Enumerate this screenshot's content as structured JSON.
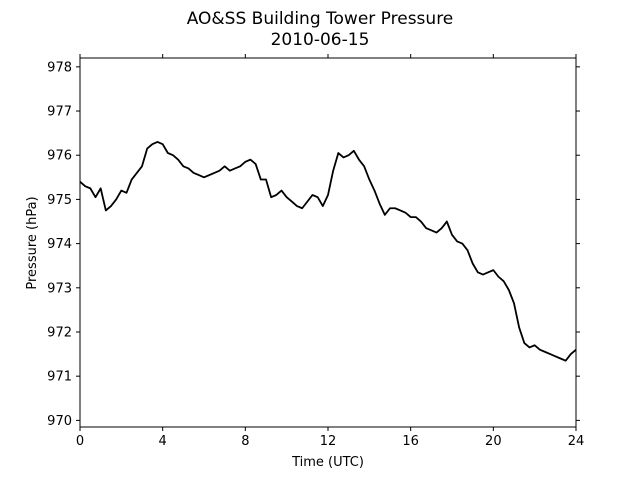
{
  "chart_data": {
    "type": "line",
    "title": "AO&SS Building Tower Pressure",
    "subtitle": "2010-06-15",
    "xlabel": "Time (UTC)",
    "ylabel": "Pressure (hPa)",
    "xlim": [
      0,
      24
    ],
    "ylim": [
      969.85,
      978.2
    ],
    "x_ticks": [
      0,
      4,
      8,
      12,
      16,
      20,
      24
    ],
    "y_ticks": [
      970,
      971,
      972,
      973,
      974,
      975,
      976,
      977,
      978
    ],
    "grid": false,
    "legend": "none",
    "line_color": "#000000",
    "series": [
      {
        "x": [
          0,
          0.25,
          0.5,
          0.75,
          1,
          1.25,
          1.5,
          1.75,
          2,
          2.25,
          2.5,
          2.75,
          3,
          3.25,
          3.5,
          3.75,
          4,
          4.25,
          4.5,
          4.75,
          5,
          5.25,
          5.5,
          5.75,
          6,
          6.25,
          6.5,
          6.75,
          7,
          7.25,
          7.5,
          7.75,
          8,
          8.25,
          8.5,
          8.75,
          9,
          9.25,
          9.5,
          9.75,
          10,
          10.25,
          10.5,
          10.75,
          11,
          11.25,
          11.5,
          11.75,
          12,
          12.25,
          12.5,
          12.75,
          13,
          13.25,
          13.5,
          13.75,
          14,
          14.25,
          14.5,
          14.75,
          15,
          15.25,
          15.5,
          15.75,
          16,
          16.25,
          16.5,
          16.75,
          17,
          17.25,
          17.5,
          17.75,
          18,
          18.25,
          18.5,
          18.75,
          19,
          19.25,
          19.5,
          19.75,
          20,
          20.25,
          20.5,
          20.75,
          21,
          21.25,
          21.5,
          21.75,
          22,
          22.25,
          22.5,
          22.75,
          23,
          23.25,
          23.5,
          23.75,
          24
        ],
        "values": [
          975.4,
          975.3,
          975.25,
          975.05,
          975.25,
          974.75,
          974.85,
          975.0,
          975.2,
          975.15,
          975.45,
          975.6,
          975.75,
          976.15,
          976.25,
          976.3,
          976.25,
          976.05,
          976.0,
          975.9,
          975.75,
          975.7,
          975.6,
          975.55,
          975.5,
          975.55,
          975.6,
          975.65,
          975.75,
          975.65,
          975.7,
          975.75,
          975.85,
          975.9,
          975.8,
          975.45,
          975.45,
          975.05,
          975.1,
          975.2,
          975.05,
          974.95,
          974.85,
          974.8,
          974.95,
          975.1,
          975.05,
          974.85,
          975.1,
          975.65,
          976.05,
          975.95,
          976.0,
          976.1,
          975.9,
          975.75,
          975.45,
          975.2,
          974.9,
          974.65,
          974.8,
          974.8,
          974.75,
          974.7,
          974.6,
          974.6,
          974.5,
          974.35,
          974.3,
          974.25,
          974.35,
          974.5,
          974.2,
          974.05,
          974.0,
          973.85,
          973.55,
          973.35,
          973.3,
          973.35,
          973.4,
          973.25,
          973.15,
          972.95,
          972.65,
          972.1,
          971.75,
          971.65,
          971.7,
          971.6,
          971.55,
          971.5,
          971.45,
          971.4,
          971.35,
          971.5,
          971.6
        ]
      }
    ]
  }
}
